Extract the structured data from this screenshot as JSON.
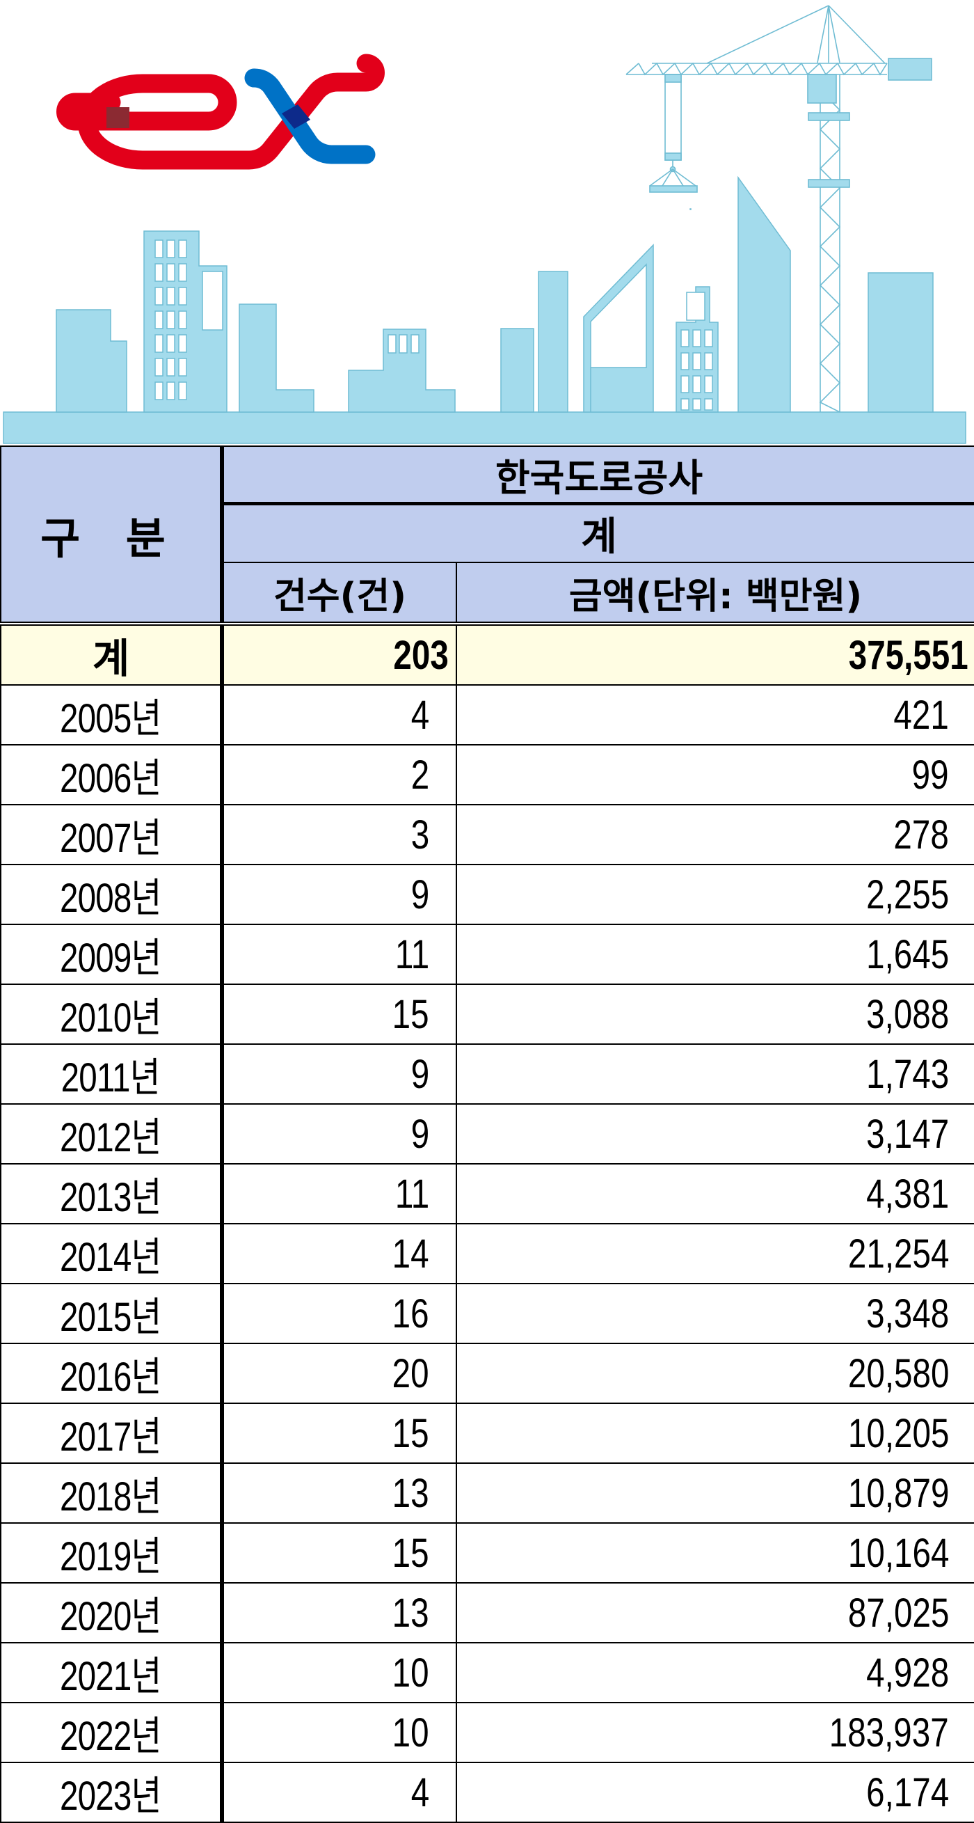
{
  "logo": {
    "text": "ex",
    "colors": {
      "red": "#e2001a",
      "blue": "#0072c6",
      "overlap_dark_red": "#8b2a32",
      "overlap_dark_blue": "#0d2a8a"
    }
  },
  "illustration": {
    "subject": "city-skyline-with-tower-crane",
    "fill_color": "#a3dbec",
    "stroke_color": "#6fbcd3"
  },
  "table": {
    "header": {
      "category": "구 분",
      "organization": "한국도로공사",
      "subtotal": "계",
      "count_col": "건수(건)",
      "amount_col": "금액(단위: 백만원)"
    },
    "colors": {
      "header_bg": "#c0cdee",
      "total_bg": "#fffde3",
      "border": "#000000"
    },
    "total": {
      "label": "계",
      "count": "203",
      "amount": "375,551"
    },
    "rows": [
      {
        "year": "2005년",
        "count": "4",
        "amount": "421"
      },
      {
        "year": "2006년",
        "count": "2",
        "amount": "99"
      },
      {
        "year": "2007년",
        "count": "3",
        "amount": "278"
      },
      {
        "year": "2008년",
        "count": "9",
        "amount": "2,255"
      },
      {
        "year": "2009년",
        "count": "11",
        "amount": "1,645"
      },
      {
        "year": "2010년",
        "count": "15",
        "amount": "3,088"
      },
      {
        "year": "2011년",
        "count": "9",
        "amount": "1,743"
      },
      {
        "year": "2012년",
        "count": "9",
        "amount": "3,147"
      },
      {
        "year": "2013년",
        "count": "11",
        "amount": "4,381"
      },
      {
        "year": "2014년",
        "count": "14",
        "amount": "21,254"
      },
      {
        "year": "2015년",
        "count": "16",
        "amount": "3,348"
      },
      {
        "year": "2016년",
        "count": "20",
        "amount": "20,580"
      },
      {
        "year": "2017년",
        "count": "15",
        "amount": "10,205"
      },
      {
        "year": "2018년",
        "count": "13",
        "amount": "10,879"
      },
      {
        "year": "2019년",
        "count": "15",
        "amount": "10,164"
      },
      {
        "year": "2020년",
        "count": "13",
        "amount": "87,025"
      },
      {
        "year": "2021년",
        "count": "10",
        "amount": "4,928"
      },
      {
        "year": "2022년",
        "count": "10",
        "amount": "183,937"
      },
      {
        "year": "2023년",
        "count": "4",
        "amount": "6,174"
      }
    ]
  }
}
